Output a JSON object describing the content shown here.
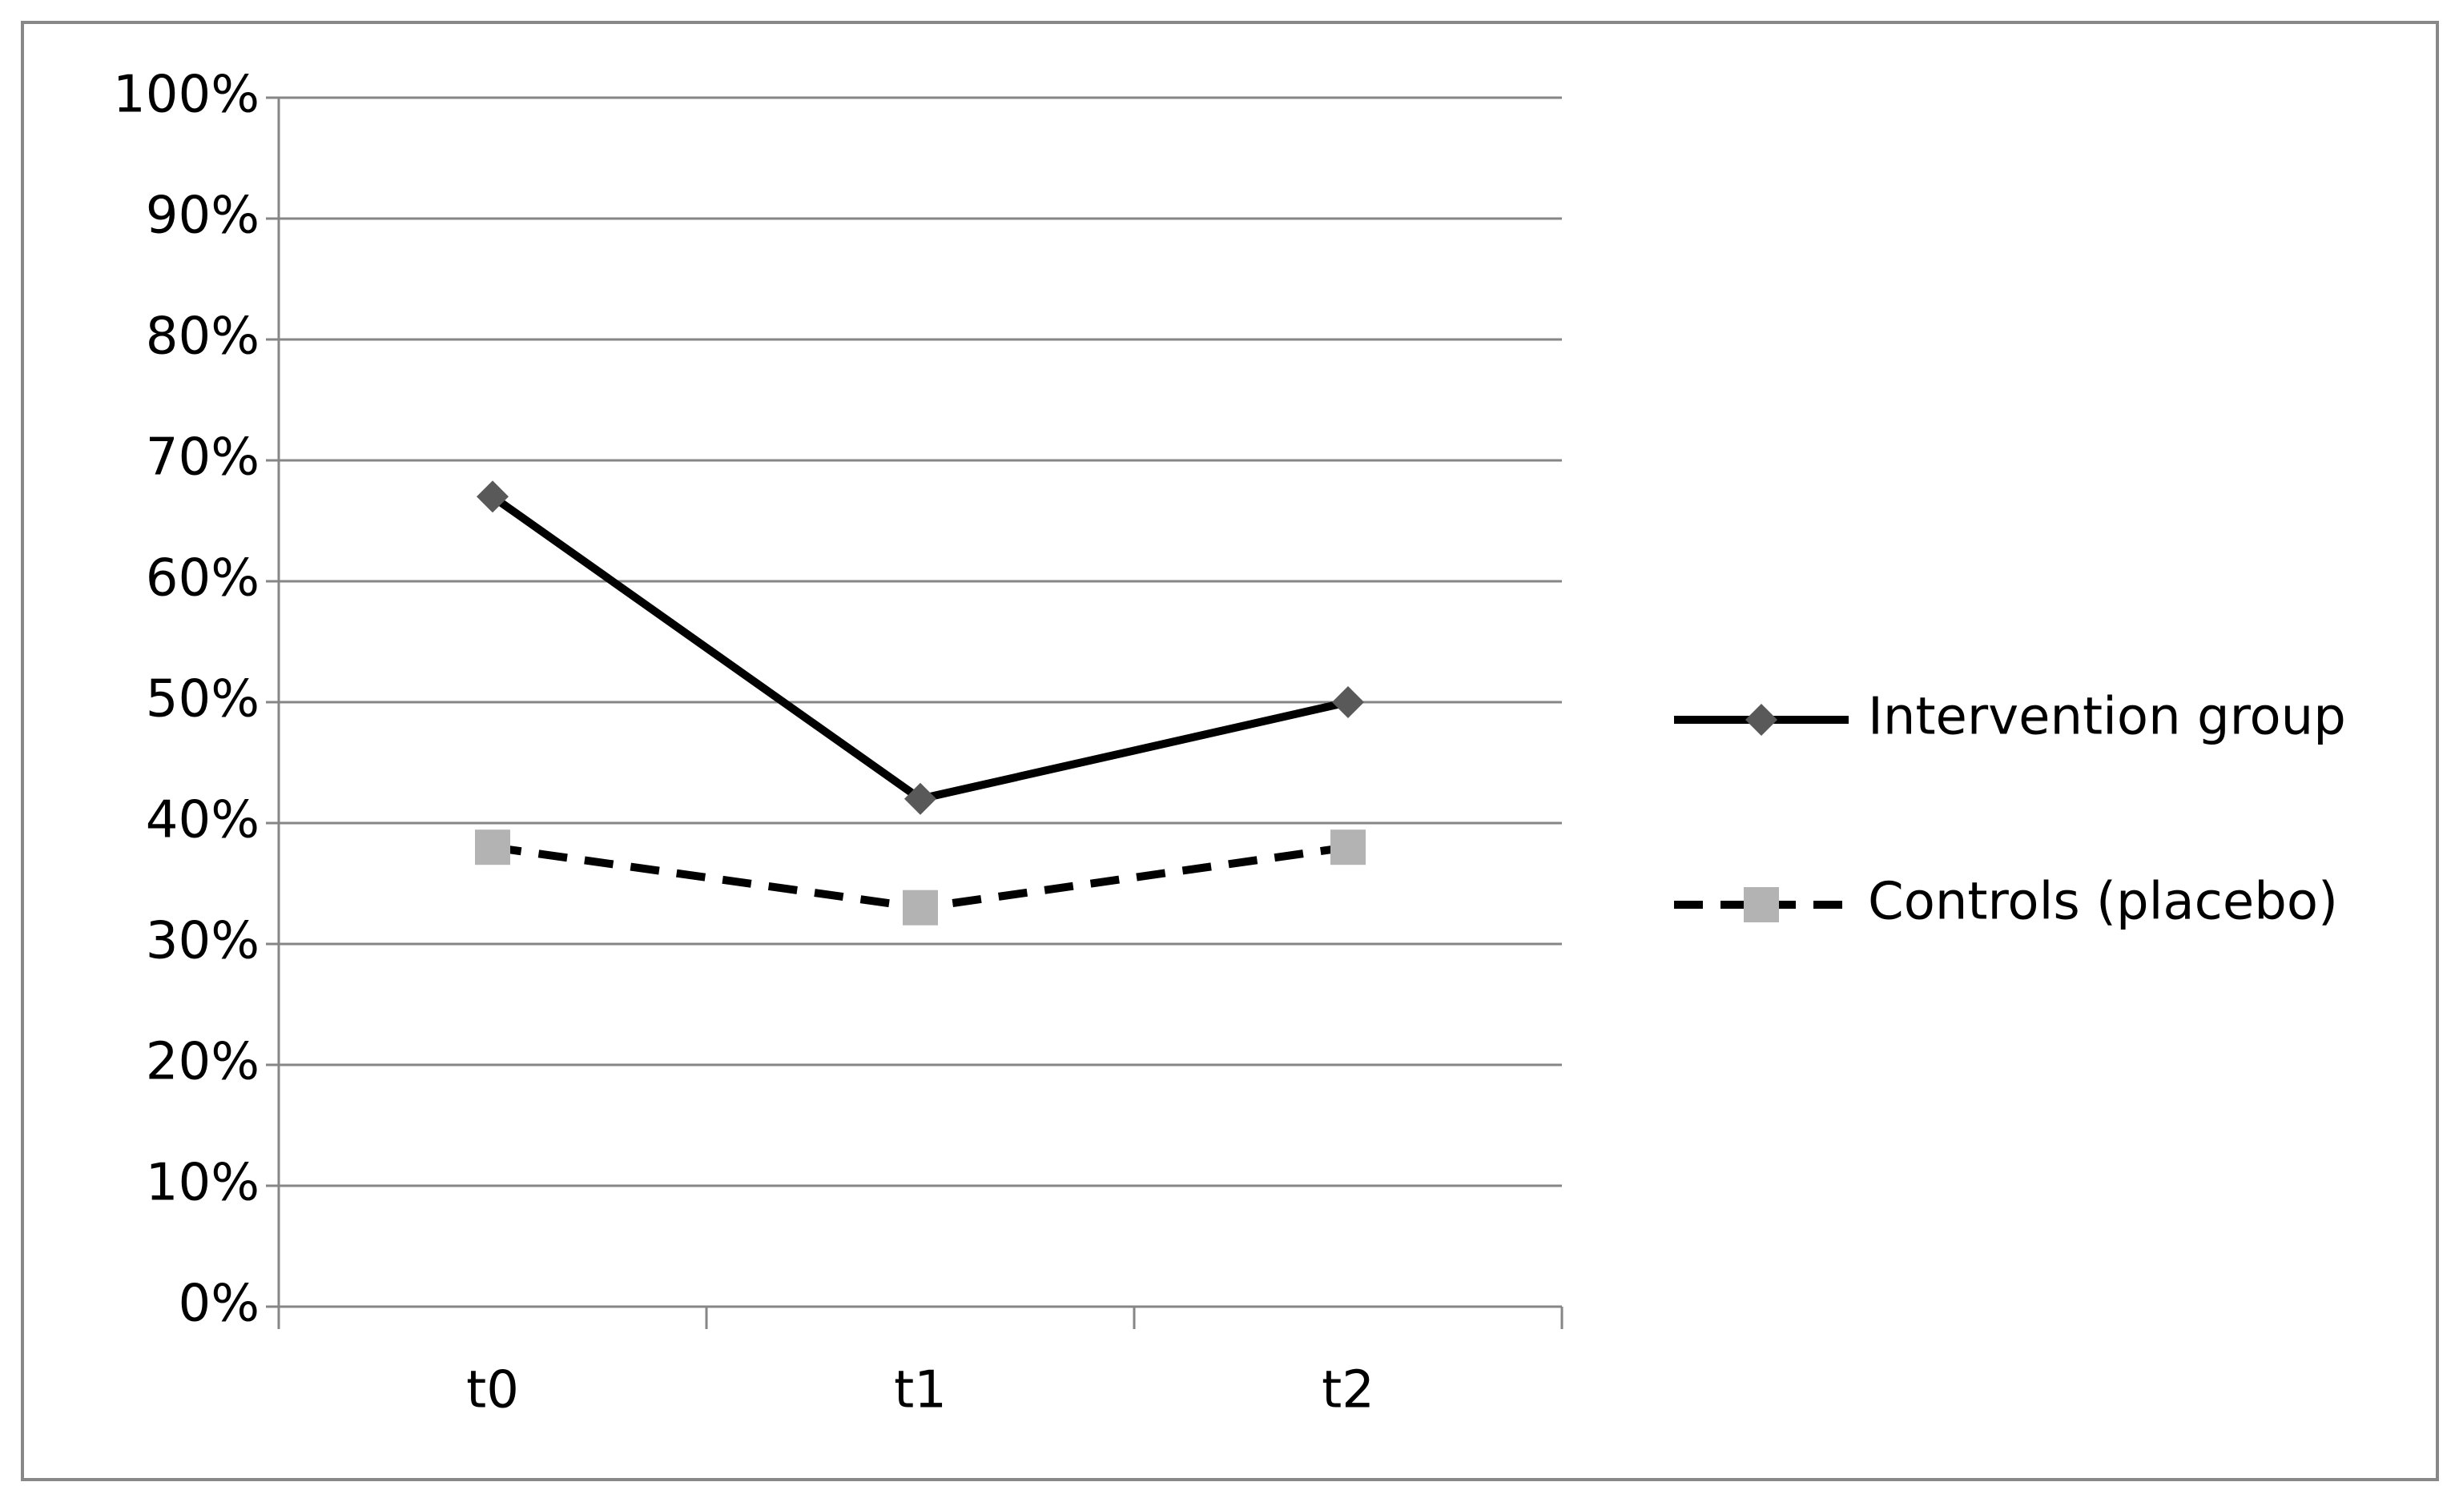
{
  "chart_data": {
    "type": "line",
    "categories": [
      "t0",
      "t1",
      "t2"
    ],
    "series": [
      {
        "name": "Intervention group",
        "color": "#000000",
        "marker": "diamond",
        "marker_color": "#595959",
        "dash": false,
        "values": [
          67,
          42,
          50
        ]
      },
      {
        "name": "Controls (placebo)",
        "color": "#000000",
        "marker": "square",
        "marker_color": "#b3b3b3",
        "dash": true,
        "values": [
          38,
          33,
          38
        ]
      }
    ],
    "ylim": [
      0,
      100
    ],
    "yticks": [
      {
        "value": 0,
        "label": "0%"
      },
      {
        "value": 10,
        "label": "10%"
      },
      {
        "value": 20,
        "label": "20%"
      },
      {
        "value": 30,
        "label": "30%"
      },
      {
        "value": 40,
        "label": "40%"
      },
      {
        "value": 50,
        "label": "50%"
      },
      {
        "value": 60,
        "label": "60%"
      },
      {
        "value": 70,
        "label": "70%"
      },
      {
        "value": 80,
        "label": "80%"
      },
      {
        "value": 90,
        "label": "90%"
      },
      {
        "value": 100,
        "label": "100%"
      }
    ],
    "grid": true,
    "legend": "right"
  }
}
